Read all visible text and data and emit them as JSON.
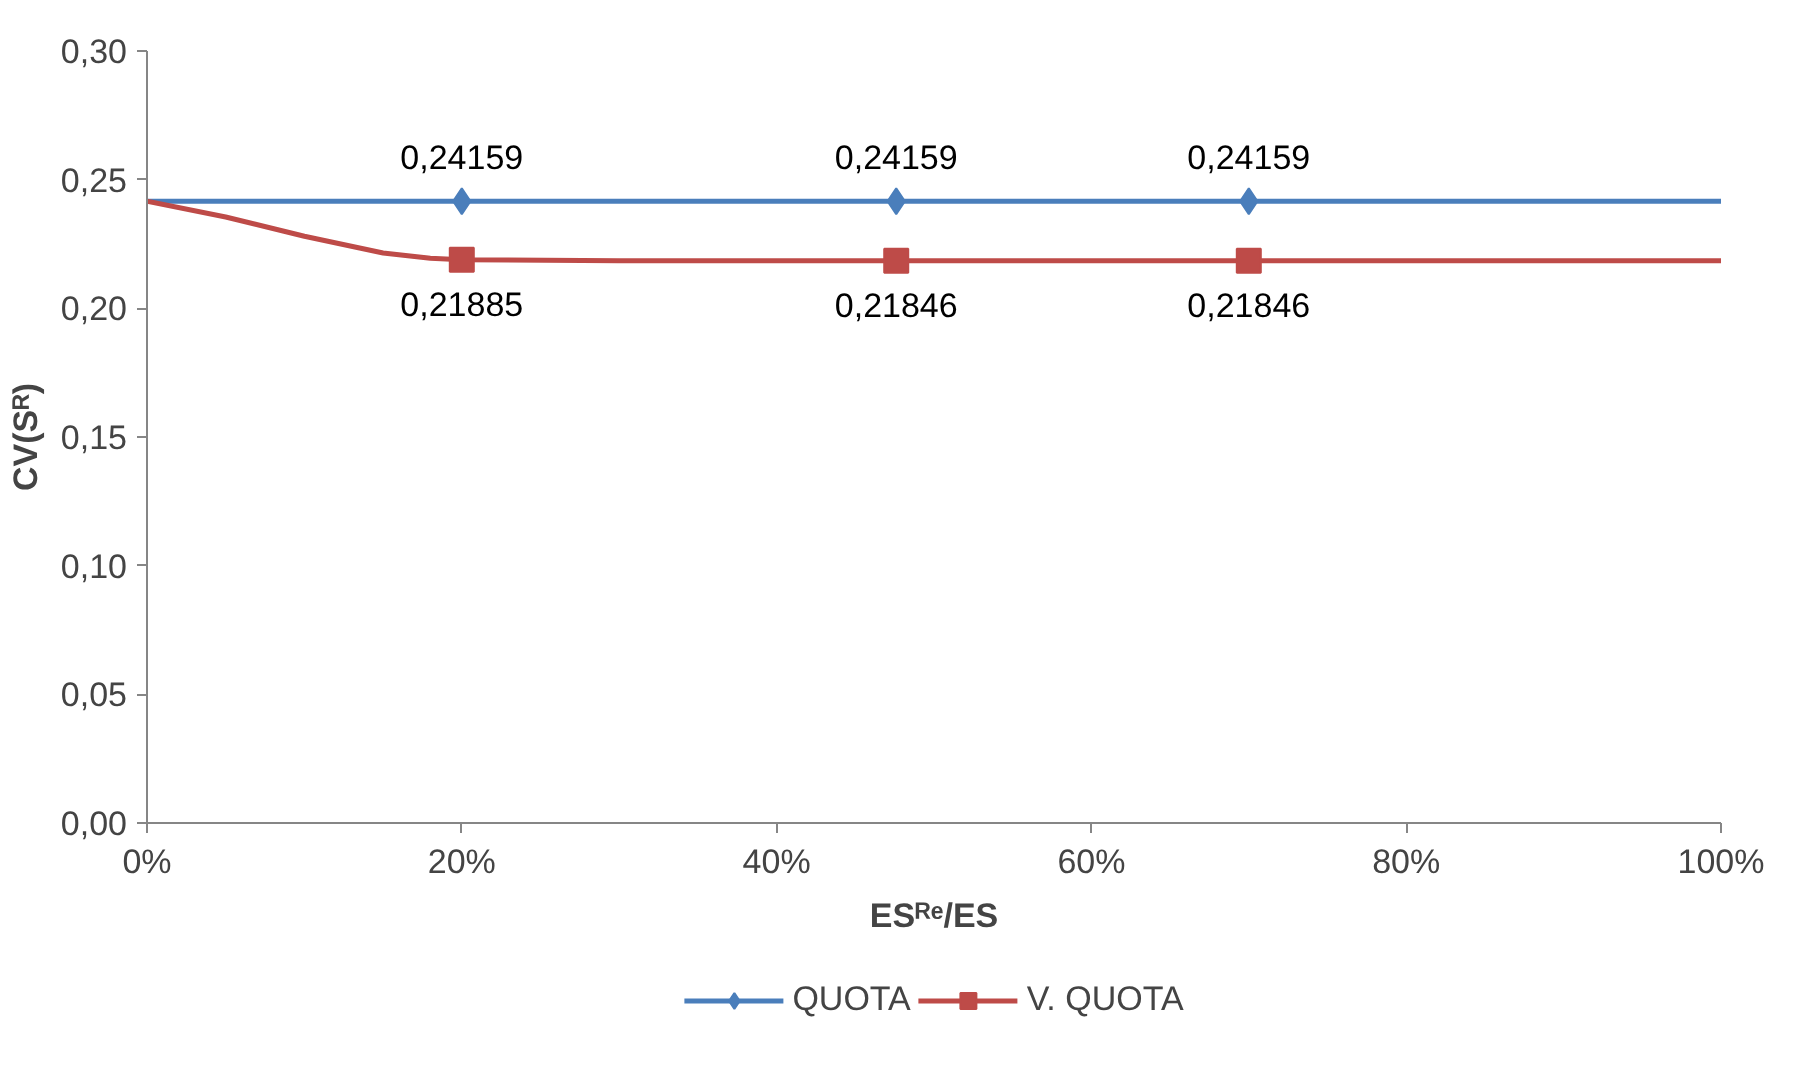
{
  "chart_data": {
    "type": "line",
    "xlabel": "ESᴿᵉ/ES",
    "ylabel": "CV(Sᴿ)",
    "xlim": [
      0,
      100
    ],
    "xticks": [
      {
        "value": 0,
        "label": "0%"
      },
      {
        "value": 20,
        "label": "20%"
      },
      {
        "value": 40,
        "label": "40%"
      },
      {
        "value": 60,
        "label": "60%"
      },
      {
        "value": 80,
        "label": "80%"
      },
      {
        "value": 100,
        "label": "100%"
      }
    ],
    "ylim": [
      0,
      0.3
    ],
    "yticks": [
      {
        "value": 0,
        "label": "0,00"
      },
      {
        "value": 0.05,
        "label": "0,05"
      },
      {
        "value": 0.1,
        "label": "0,10"
      },
      {
        "value": 0.15,
        "label": "0,15"
      },
      {
        "value": 0.2,
        "label": "0,20"
      },
      {
        "value": 0.25,
        "label": "0,25"
      },
      {
        "value": 0.3,
        "label": "0,30"
      }
    ],
    "grid": false,
    "legend": "bottom",
    "line_style": "solid",
    "series": [
      {
        "color": "#4a7ebb",
        "marker": "none",
        "x": [
          0,
          100
        ],
        "values": [
          0.24159,
          0.24159
        ]
      },
      {
        "color": "#be4b48",
        "marker": "none",
        "x": [
          0,
          5,
          10,
          15,
          18,
          20,
          30,
          47.6,
          70,
          100
        ],
        "values": [
          0.2416,
          0.2355,
          0.228,
          0.2215,
          0.2195,
          0.21885,
          0.2185,
          0.21846,
          0.21846,
          0.21846
        ]
      },
      {
        "type": "scatter",
        "name": "QUOTA",
        "color": "#4a7ebb",
        "marker": "diamond",
        "x": [
          20,
          47.6,
          70
        ],
        "values": [
          0.24159,
          0.24159,
          0.24159
        ],
        "value_labels": [
          "0,24159",
          "0,24159",
          "0,24159"
        ]
      },
      {
        "type": "scatter",
        "name": "V. QUOTA",
        "color": "#be4b48",
        "marker": "square",
        "x": [
          20,
          47.6,
          70
        ],
        "values": [
          0.21885,
          0.21846,
          0.21846
        ],
        "value_labels": [
          "0,21885",
          "0,21846",
          "0,21846"
        ]
      }
    ]
  }
}
